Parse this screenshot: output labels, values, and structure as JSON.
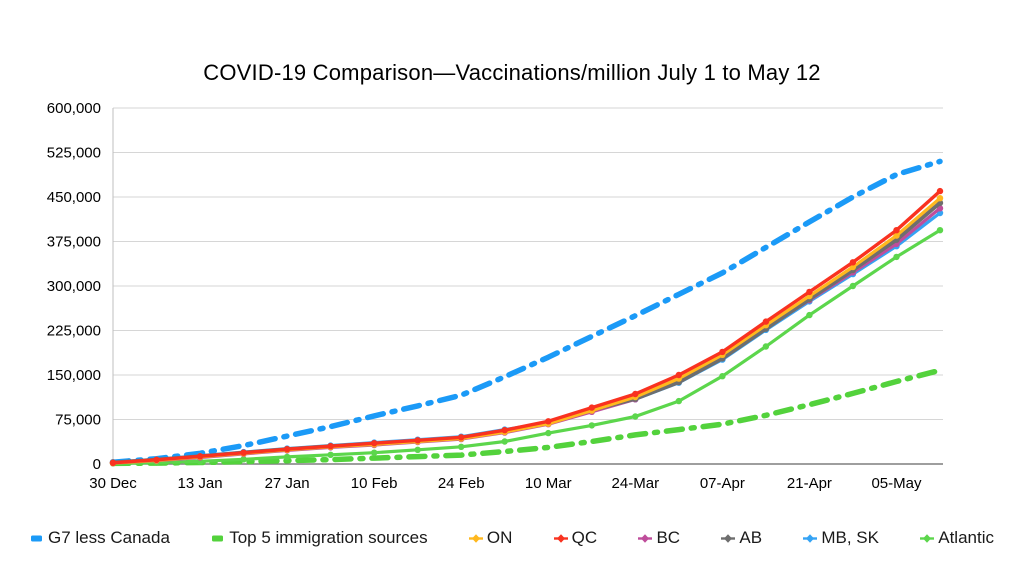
{
  "chart_data": {
    "type": "line",
    "title": "COVID-19 Comparison—Vaccinations/million July 1 to May 12",
    "xlabel": "",
    "ylabel": "",
    "ylim": [
      0,
      600000
    ],
    "y_tick_step": 75000,
    "y_tick_labels": [
      "0",
      "75,000",
      "150,000",
      "225,000",
      "300,000",
      "375,000",
      "450,000",
      "525,000",
      "600,000"
    ],
    "grid": true,
    "legend_position": "bottom",
    "x_unit": "weeks since 30 Dec",
    "weeks_total": 19,
    "x_tick_weeks": [
      0,
      2,
      4,
      6,
      8,
      10,
      12,
      14,
      16,
      18
    ],
    "x_tick_labels": [
      "30 Dec",
      "13 Jan",
      "27 Jan",
      "10 Feb",
      "24 Feb",
      "10 Mar",
      "24-Mar",
      "07-Apr",
      "21-Apr",
      "05-May"
    ],
    "series": [
      {
        "name": "G7 less Canada",
        "color": "#1b9af7",
        "style": "dash-dot",
        "width": 5.5,
        "markers": false,
        "z": 1,
        "values": [
          3000,
          9000,
          18000,
          31000,
          47000,
          63000,
          81000,
          98000,
          116000,
          147000,
          180000,
          215000,
          250000,
          286000,
          322000,
          365000,
          408000,
          450000,
          488000,
          510000
        ]
      },
      {
        "name": "Top 5 immigration sources",
        "color": "#53d23c",
        "style": "dash-dot",
        "width": 5.5,
        "markers": false,
        "z": 2,
        "values": [
          1000,
          1600,
          2500,
          4000,
          5500,
          7500,
          10000,
          12500,
          15000,
          21000,
          28000,
          38000,
          49000,
          58000,
          67000,
          82000,
          100000,
          119000,
          139000,
          158000
        ]
      },
      {
        "name": "ON",
        "color": "#ffb81e",
        "style": "solid",
        "width": 3.2,
        "markers": true,
        "z": 7,
        "values": [
          1500,
          6000,
          12000,
          18000,
          24000,
          29000,
          33000,
          38000,
          43000,
          54000,
          68000,
          90000,
          113000,
          144000,
          184000,
          234000,
          283000,
          332000,
          385000,
          448000
        ]
      },
      {
        "name": "QC",
        "color": "#f93220",
        "style": "solid",
        "width": 3.4,
        "markers": true,
        "z": 8,
        "values": [
          2000,
          7000,
          13000,
          19000,
          25000,
          30000,
          35000,
          40000,
          45000,
          57000,
          72000,
          95000,
          118000,
          150000,
          189000,
          240000,
          290000,
          340000,
          394000,
          460000
        ]
      },
      {
        "name": "BC",
        "color": "#bf4d9b",
        "style": "solid",
        "width": 3.2,
        "markers": true,
        "z": 5,
        "values": [
          1500,
          5500,
          11000,
          17000,
          23000,
          28000,
          32000,
          37000,
          42000,
          53000,
          67000,
          88000,
          109000,
          139000,
          179000,
          229000,
          276000,
          323000,
          371000,
          431000
        ]
      },
      {
        "name": "AB",
        "color": "#6e6e6e",
        "style": "solid",
        "width": 4.0,
        "markers": true,
        "z": 6,
        "values": [
          2500,
          7000,
          13000,
          19000,
          25000,
          30000,
          34000,
          39000,
          44000,
          55000,
          69000,
          91000,
          110000,
          138000,
          178000,
          228000,
          278000,
          327000,
          378000,
          440000
        ]
      },
      {
        "name": "MB, SK",
        "color": "#35a3f4",
        "style": "solid",
        "width": 3.2,
        "markers": true,
        "z": 4,
        "values": [
          3000,
          8000,
          14000,
          20000,
          26000,
          31000,
          36000,
          41000,
          46000,
          58000,
          70000,
          90000,
          109000,
          137000,
          176000,
          226000,
          274000,
          320000,
          367000,
          423000
        ]
      },
      {
        "name": "Atlantic",
        "color": "#5cd64c",
        "style": "solid",
        "width": 3.2,
        "markers": true,
        "z": 3,
        "values": [
          1000,
          2500,
          4500,
          8000,
          12000,
          15500,
          19000,
          24000,
          29000,
          38000,
          52000,
          65000,
          80000,
          106000,
          148000,
          198000,
          251000,
          300000,
          349000,
          394000
        ]
      }
    ],
    "plot_colors": {
      "gridline": "#d6d6d6",
      "y_axis_line": "#bfbfbf",
      "x_axis_line": "#7f7f7f",
      "tick_label": "#000000"
    }
  }
}
